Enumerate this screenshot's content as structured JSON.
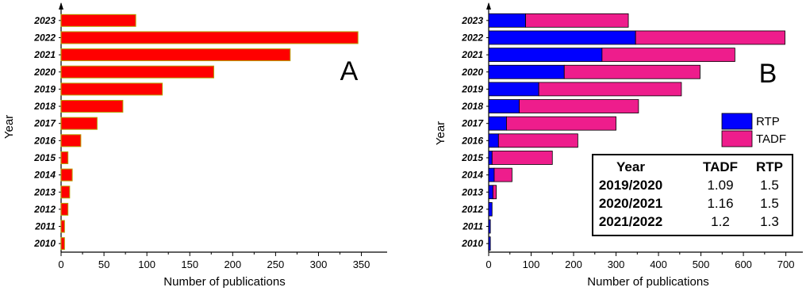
{
  "chart_data": [
    {
      "type": "bar",
      "orientation": "horizontal",
      "panel_label": "A",
      "xlabel": "Number of publications",
      "ylabel": "Year",
      "xlim": [
        0,
        380
      ],
      "xticks": [
        0,
        50,
        100,
        150,
        200,
        250,
        300,
        350
      ],
      "categories": [
        "2010",
        "2011",
        "2012",
        "2013",
        "2014",
        "2015",
        "2016",
        "2017",
        "2018",
        "2019",
        "2020",
        "2021",
        "2022",
        "2023"
      ],
      "series": [
        {
          "values": [
            4,
            4,
            8,
            10,
            13,
            8,
            23,
            42,
            72,
            118,
            178,
            267,
            346,
            87
          ],
          "color": "#ff0000",
          "edge_color": "#b5a000"
        }
      ]
    },
    {
      "type": "bar",
      "orientation": "horizontal",
      "stacked": true,
      "panel_label": "B",
      "xlabel": "Number of publications",
      "ylabel": "Year",
      "xlim": [
        0,
        740
      ],
      "xticks": [
        0,
        100,
        200,
        300,
        400,
        500,
        600,
        700
      ],
      "categories": [
        "2010",
        "2011",
        "2012",
        "2013",
        "2014",
        "2015",
        "2016",
        "2017",
        "2018",
        "2019",
        "2020",
        "2021",
        "2022",
        "2023"
      ],
      "legend_position": "right",
      "series": [
        {
          "name": "RTP",
          "color": "#0000ff",
          "values": [
            4,
            4,
            8,
            10,
            13,
            8,
            23,
            42,
            72,
            118,
            178,
            267,
            346,
            87
          ]
        },
        {
          "name": "TADF",
          "color": "#ee1d8c",
          "values": [
            0,
            0,
            0,
            8,
            42,
            142,
            187,
            258,
            281,
            336,
            320,
            313,
            352,
            242
          ]
        }
      ],
      "table": {
        "headers": [
          "Year",
          "TADF",
          "RTP"
        ],
        "rows": [
          [
            "2019/2020",
            "1.09",
            "1.5"
          ],
          [
            "2020/2021",
            "1.16",
            "1.5"
          ],
          [
            "2021/2022",
            "1.2",
            "1.3"
          ]
        ]
      }
    }
  ]
}
